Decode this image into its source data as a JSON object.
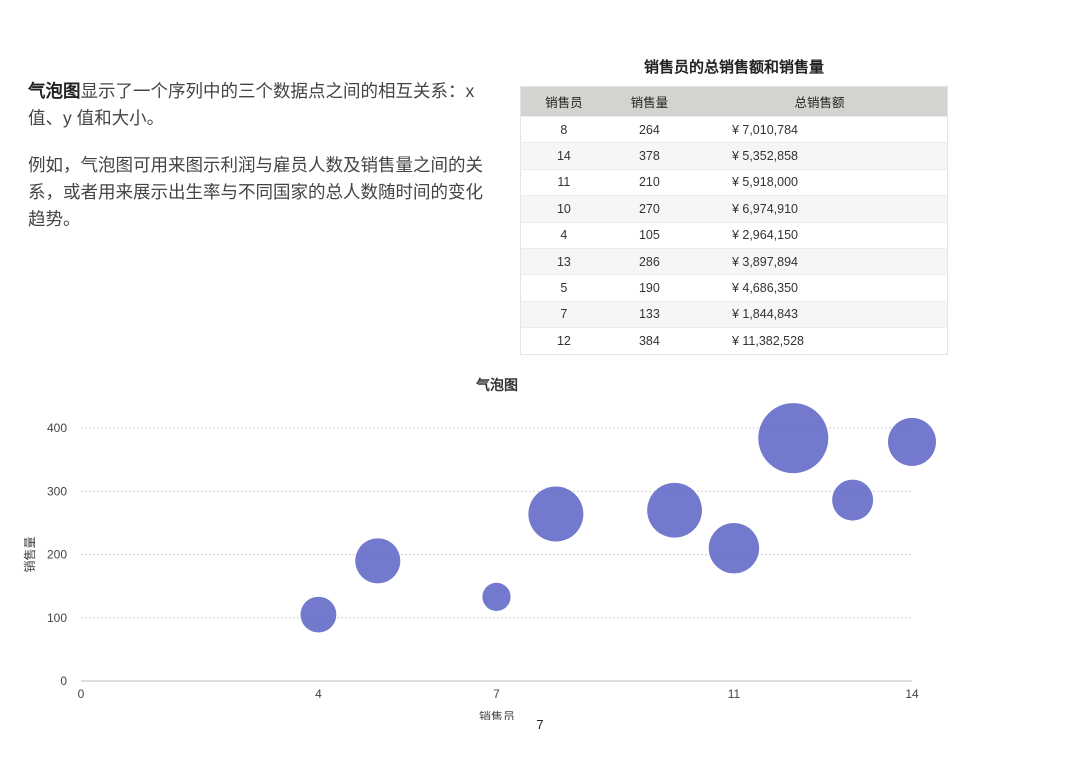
{
  "intro": {
    "term": "气泡图",
    "p1_rest": "显示了一个序列中的三个数据点之间的相互关系：x 值、y 值和大小。",
    "p2": "例如，气泡图可用来图示利润与雇员人数及销售量之间的关系，或者用来展示出生率与不同国家的总人数随时间的变化趋势。"
  },
  "table": {
    "title": "销售员的总销售额和销售量",
    "headers": [
      "销售员",
      "销售量",
      "总销售额"
    ],
    "rows": [
      [
        "8",
        "264",
        "¥ 7,010,784"
      ],
      [
        "14",
        "378",
        "¥ 5,352,858"
      ],
      [
        "11",
        "210",
        "¥ 5,918,000"
      ],
      [
        "10",
        "270",
        "¥ 6,974,910"
      ],
      [
        "4",
        "105",
        "¥ 2,964,150"
      ],
      [
        "13",
        "286",
        "¥ 3,897,894"
      ],
      [
        "5",
        "190",
        "¥ 4,686,350"
      ],
      [
        "7",
        "133",
        "¥ 1,844,843"
      ],
      [
        "12",
        "384",
        "¥ 11,382,528"
      ]
    ]
  },
  "chart_data": {
    "type": "scatter",
    "subtype": "bubble",
    "title": "气泡图",
    "xlabel": "销售员",
    "ylabel": "销售量",
    "xlim": [
      0,
      14
    ],
    "ylim": [
      0,
      400
    ],
    "xticks": [
      0,
      4,
      7,
      11,
      14
    ],
    "yticks": [
      0,
      100,
      200,
      300,
      400
    ],
    "grid": true,
    "legend": "none",
    "color": "#6b72c9",
    "points": [
      {
        "x": 8,
        "y": 264,
        "size": 7010784
      },
      {
        "x": 14,
        "y": 378,
        "size": 5352858
      },
      {
        "x": 11,
        "y": 210,
        "size": 5918000
      },
      {
        "x": 10,
        "y": 270,
        "size": 6974910
      },
      {
        "x": 4,
        "y": 105,
        "size": 2964150
      },
      {
        "x": 13,
        "y": 286,
        "size": 3897894
      },
      {
        "x": 5,
        "y": 190,
        "size": 4686350
      },
      {
        "x": 7,
        "y": 133,
        "size": 1844843
      },
      {
        "x": 12,
        "y": 384,
        "size": 11382528
      }
    ]
  },
  "page": {
    "number": "7"
  }
}
